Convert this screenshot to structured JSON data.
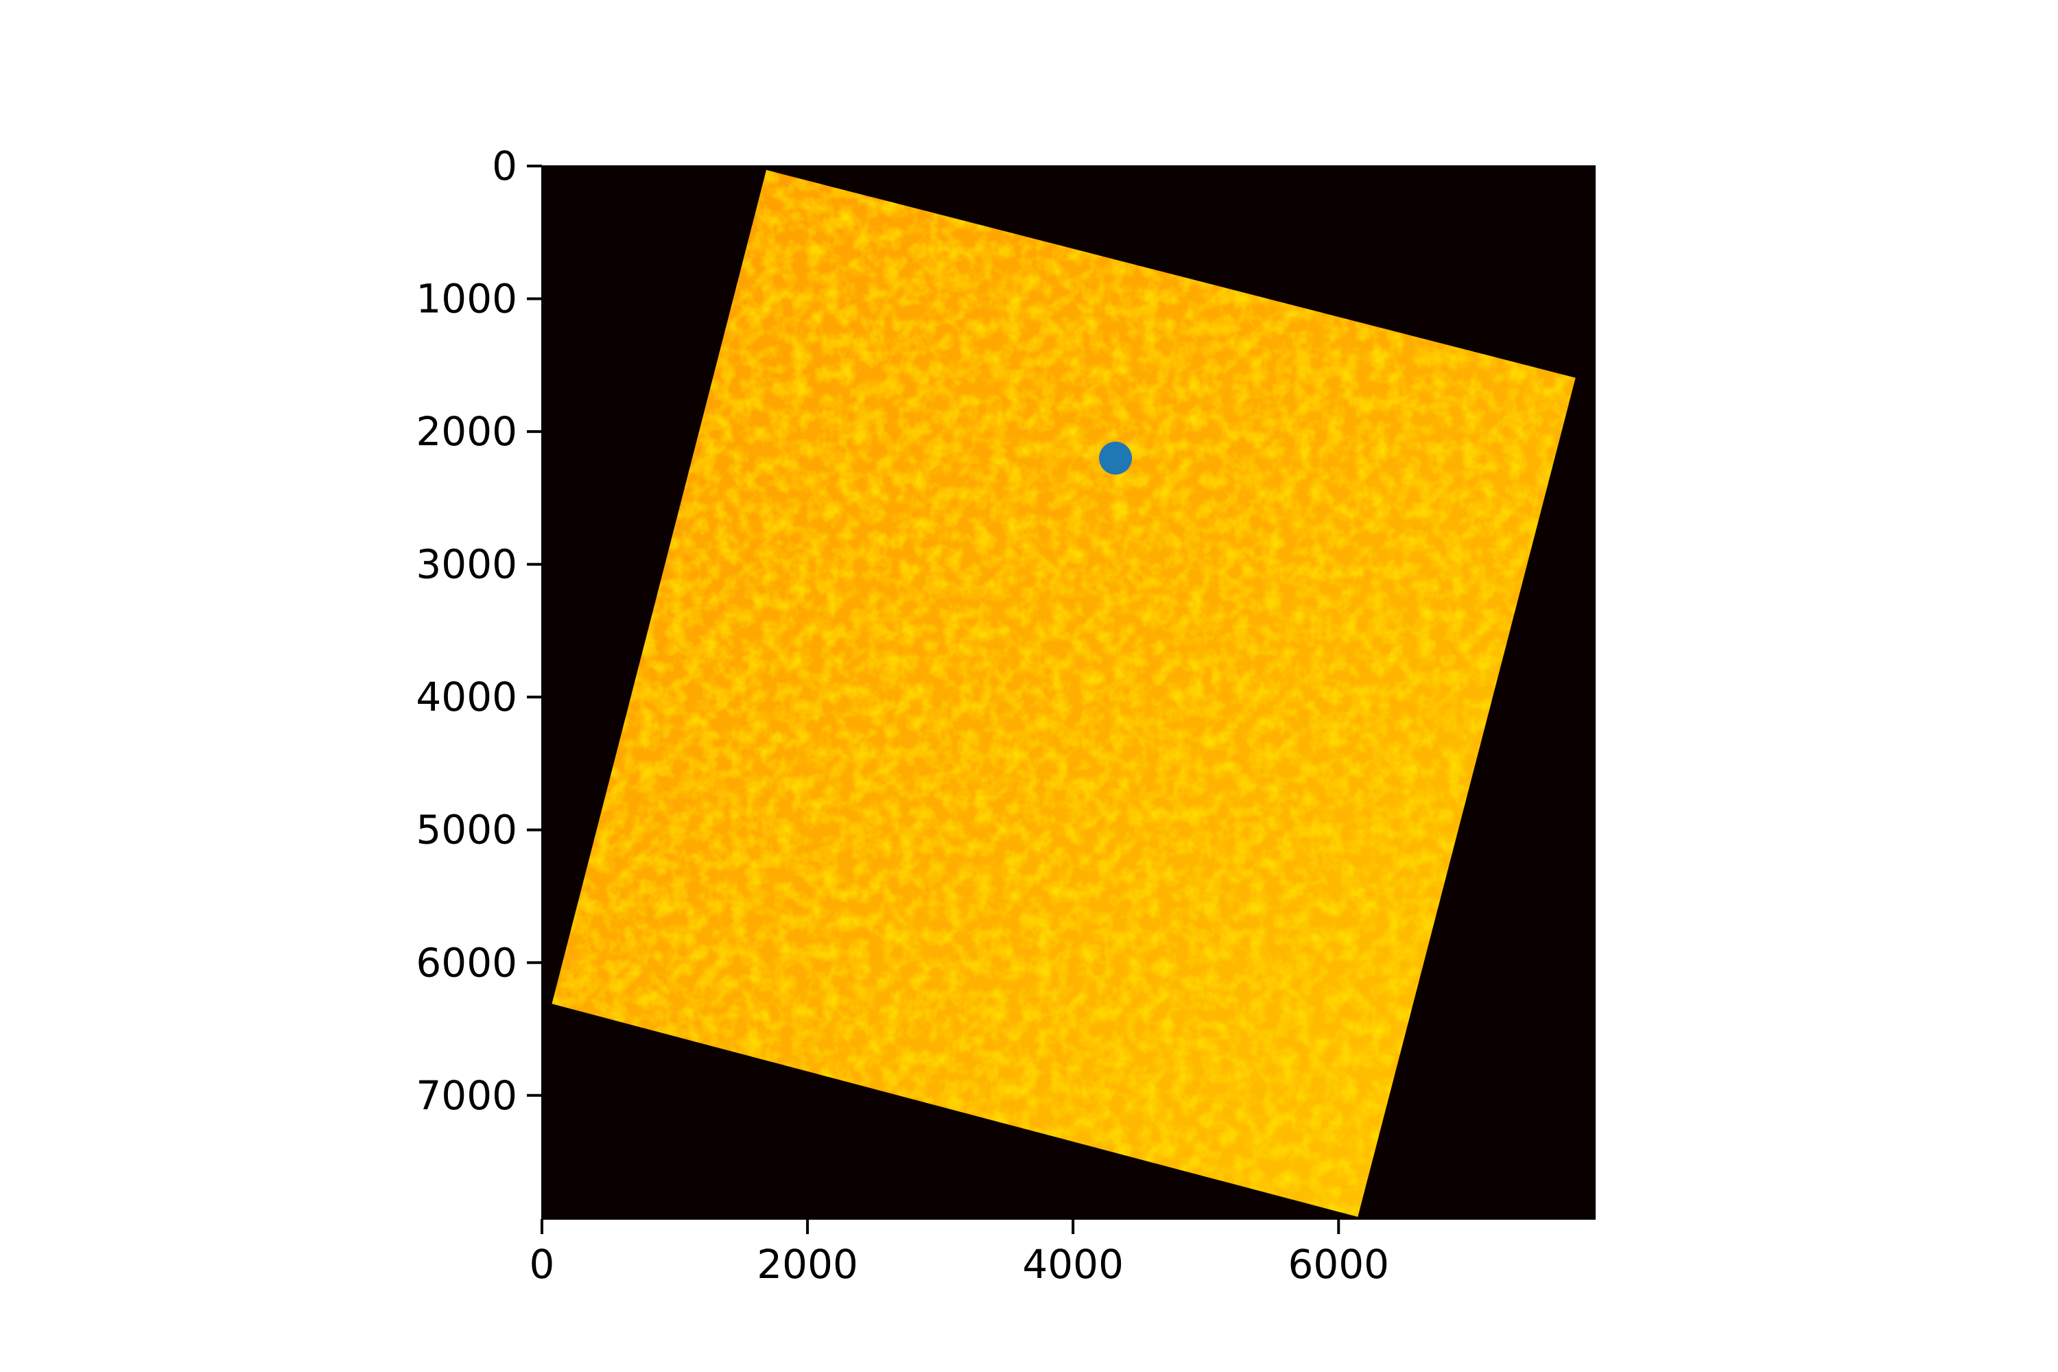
{
  "chart_data": {
    "type": "scatter",
    "title": "",
    "xlabel": "",
    "ylabel": "",
    "xlim": [
      0,
      7931
    ],
    "ylim": [
      7931,
      0
    ],
    "y_inverted": true,
    "grid": false,
    "legend": "none",
    "x_ticks": [
      0,
      2000,
      4000,
      6000
    ],
    "x_tick_labels": [
      "0",
      "2000",
      "4000",
      "6000"
    ],
    "y_ticks": [
      0,
      1000,
      2000,
      3000,
      4000,
      5000,
      6000,
      7000
    ],
    "y_tick_labels": [
      "0",
      "1000",
      "2000",
      "3000",
      "4000",
      "5000",
      "6000",
      "7000"
    ],
    "background_image": {
      "description_colormap": "hot",
      "nodata_color": "#0b0000",
      "scene_colors": [
        "#ff9f00",
        "#ffad00",
        "#ff8c00",
        "#ffc400"
      ],
      "scene_corners": [
        {
          "x": 1690,
          "y": 30
        },
        {
          "x": 7785,
          "y": 1595
        },
        {
          "x": 6145,
          "y": 7915
        },
        {
          "x": 75,
          "y": 6310
        }
      ]
    },
    "series": [
      {
        "points": [
          {
            "x": 4320,
            "y": 2200
          }
        ],
        "color": "#1f77b4",
        "marker": "circle"
      }
    ]
  }
}
